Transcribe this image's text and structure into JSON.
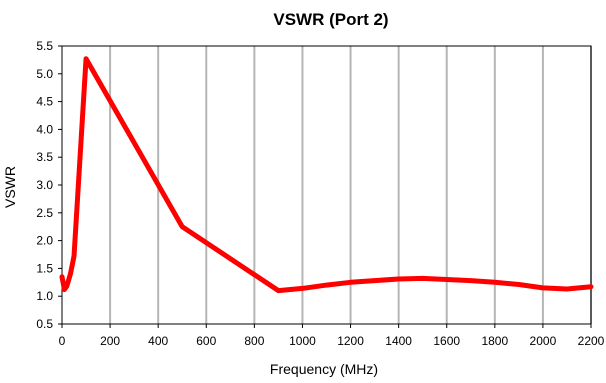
{
  "chart_data": {
    "type": "line",
    "title": "VSWR (Port 2)",
    "xlabel": "Frequency (MHz)",
    "ylabel": "VSWR",
    "xlim": [
      0,
      2200
    ],
    "ylim": [
      0.5,
      5.5
    ],
    "x_ticks": [
      0,
      200,
      400,
      600,
      800,
      1000,
      1200,
      1400,
      1600,
      1800,
      2000,
      2200
    ],
    "y_ticks": [
      0.5,
      1.0,
      1.5,
      2.0,
      2.5,
      3.0,
      3.5,
      4.0,
      4.5,
      5.0,
      5.5
    ],
    "x_tick_labels": [
      "0",
      "200",
      "400",
      "600",
      "800",
      "1000",
      "1200",
      "1400",
      "1600",
      "1800",
      "2000",
      "2200"
    ],
    "y_tick_labels": [
      "0.5",
      "1.0",
      "1.5",
      "2.0",
      "2.5",
      "3.0",
      "3.5",
      "4.0",
      "4.5",
      "5.0",
      "5.5"
    ],
    "grid": {
      "vertical": true,
      "horizontal": false
    },
    "series": [
      {
        "color": "#ff0000",
        "x": [
          0,
          10,
          20,
          35,
          50,
          100,
          500,
          900,
          1000,
          1100,
          1200,
          1300,
          1400,
          1500,
          1600,
          1700,
          1800,
          1900,
          2000,
          2100,
          2200
        ],
        "y": [
          1.35,
          1.12,
          1.18,
          1.4,
          1.72,
          5.27,
          2.25,
          1.1,
          1.14,
          1.2,
          1.25,
          1.28,
          1.31,
          1.32,
          1.3,
          1.28,
          1.25,
          1.21,
          1.15,
          1.13,
          1.17
        ]
      }
    ]
  }
}
